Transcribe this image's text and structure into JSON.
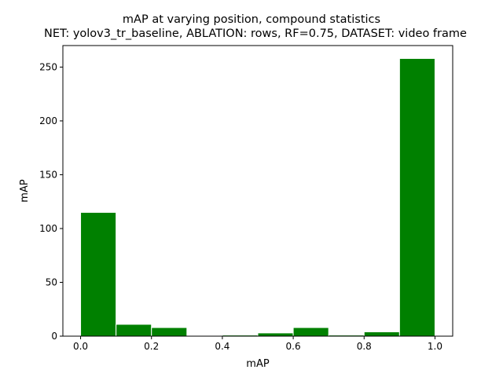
{
  "chart_data": {
    "type": "bar",
    "title": "mAP at varying position, compound statistics",
    "subtitle": "NET: yolov3_tr_baseline, ABLATION: rows, RF=0.75, DATASET: video frame",
    "xlabel": "mAP",
    "ylabel": "mAP",
    "xlim": [
      -0.05,
      1.05
    ],
    "ylim": [
      0,
      270
    ],
    "xticks": [
      "0.0",
      "0.2",
      "0.4",
      "0.6",
      "0.8",
      "1.0"
    ],
    "yticks": [
      "0",
      "50",
      "100",
      "150",
      "200",
      "250"
    ],
    "bins": [
      {
        "start": 0.0,
        "end": 0.1,
        "value": 115
      },
      {
        "start": 0.1,
        "end": 0.2,
        "value": 11
      },
      {
        "start": 0.2,
        "end": 0.3,
        "value": 8
      },
      {
        "start": 0.3,
        "end": 0.4,
        "value": 0
      },
      {
        "start": 0.4,
        "end": 0.5,
        "value": 1
      },
      {
        "start": 0.5,
        "end": 0.6,
        "value": 3
      },
      {
        "start": 0.6,
        "end": 0.7,
        "value": 8
      },
      {
        "start": 0.7,
        "end": 0.8,
        "value": 1
      },
      {
        "start": 0.8,
        "end": 0.9,
        "value": 4
      },
      {
        "start": 0.9,
        "end": 1.0,
        "value": 258
      }
    ],
    "bar_color": "#008000",
    "edge_color": "#ffffff",
    "grid": false,
    "legend": "none"
  }
}
